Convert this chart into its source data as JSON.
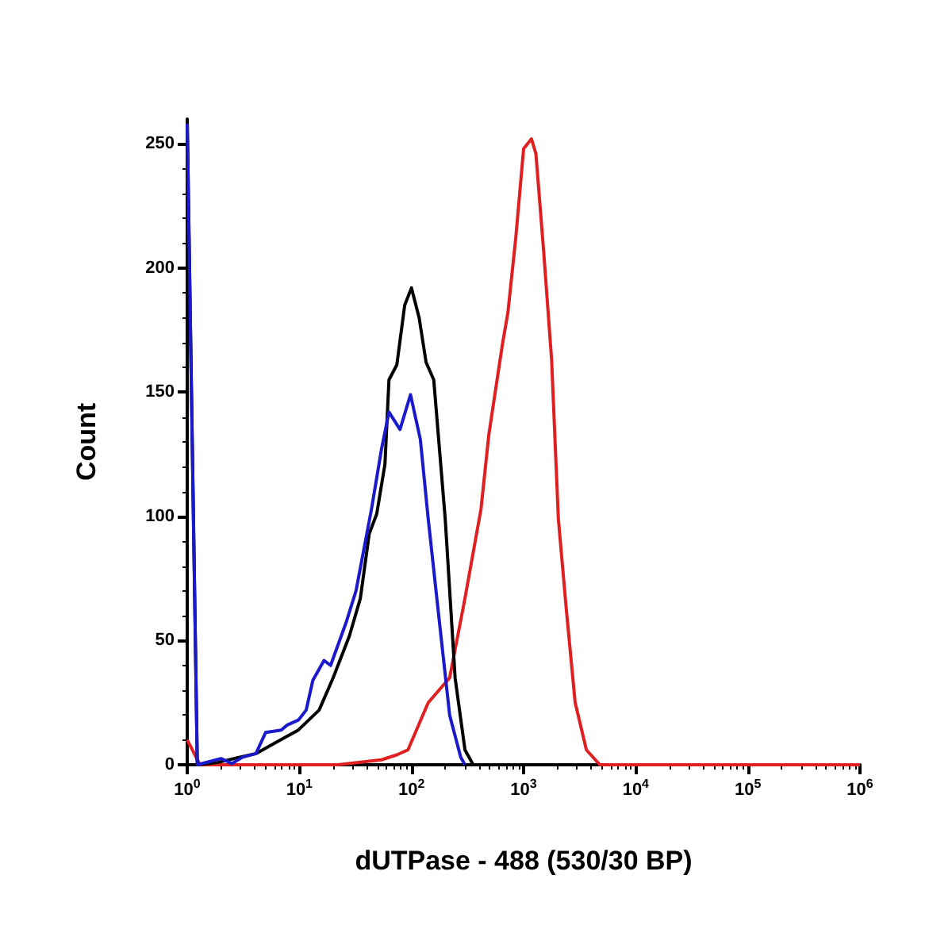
{
  "chart_data": {
    "type": "line",
    "xlabel": "dUTPase - 488 (530/30 BP)",
    "ylabel": "Count",
    "log": "x",
    "grid": false,
    "marker": "none",
    "line_style": "solid",
    "xlim": [
      1,
      1000000
    ],
    "xticks": [
      {
        "value": 1,
        "label": "10$^{0}$"
      },
      {
        "value": 10,
        "label": "10$^{1}$"
      },
      {
        "value": 100,
        "label": "10$^{2}$"
      },
      {
        "value": 1000,
        "label": "10$^{3}$"
      },
      {
        "value": 10000,
        "label": "10$^{4}$"
      },
      {
        "value": 100000,
        "label": "10$^{5}$"
      },
      {
        "value": 1000000,
        "label": "10$^{6}$"
      }
    ],
    "ylim": [
      0,
      260
    ],
    "yticks": [
      0,
      50,
      100,
      150,
      200,
      250
    ],
    "series": [
      {
        "color": "#e02020",
        "x": [
          1,
          1.3,
          22,
          54,
          74,
          93,
          141,
          219,
          300,
          417,
          490,
          646,
          724,
          851,
          1000,
          1175,
          1288,
          1514,
          1778,
          2042,
          2399,
          2884,
          3631,
          4786,
          1000000
        ],
        "values": [
          10,
          0,
          0,
          2,
          4,
          6,
          25,
          35,
          67,
          103,
          133,
          169,
          182,
          212,
          248,
          252,
          246,
          206,
          163,
          99,
          63,
          25,
          6,
          0,
          0
        ]
      },
      {
        "color": "#000000",
        "x": [
          1,
          1.23,
          1.9,
          2.9,
          4.1,
          6.2,
          9.8,
          15,
          20,
          28,
          35,
          42,
          49,
          58,
          63,
          74,
          87,
          100,
          117,
          135,
          158,
          200,
          245,
          300,
          355
        ],
        "values": [
          260,
          0,
          1,
          3,
          4.5,
          9,
          14,
          22,
          35,
          52,
          67,
          93,
          101,
          121,
          155,
          161,
          185,
          192,
          180,
          162,
          155,
          99,
          35,
          6,
          0
        ]
      },
      {
        "color": "#1a1acc",
        "x": [
          1,
          1.23,
          2,
          2.5,
          3.1,
          4.1,
          5,
          6.9,
          7.8,
          9.8,
          11.5,
          13.2,
          16.6,
          19,
          26,
          32,
          44,
          54,
          63,
          79,
          98,
          120,
          141,
          178,
          219,
          275,
          300
        ],
        "values": [
          258,
          0,
          2.5,
          0.5,
          3,
          4.5,
          13,
          14,
          16,
          18,
          22,
          34,
          42,
          40,
          57,
          70,
          103,
          127,
          142,
          135,
          149,
          131,
          99,
          57,
          20,
          3,
          0
        ]
      }
    ]
  }
}
